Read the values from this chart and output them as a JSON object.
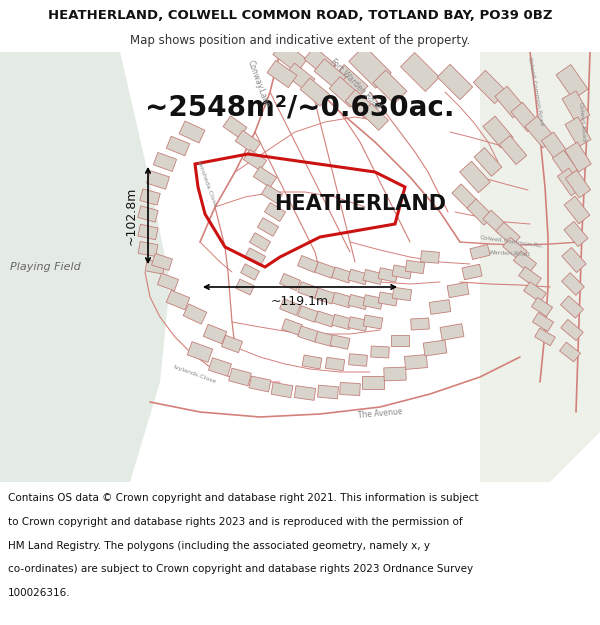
{
  "title_line1": "HEATHERLAND, COLWELL COMMON ROAD, TOTLAND BAY, PO39 0BZ",
  "title_line2": "Map shows position and indicative extent of the property.",
  "area_text": "~2548m²/~0.630ac.",
  "property_label": "HEATHERLAND",
  "dim1": "~102.8m",
  "dim2": "~119.1m",
  "playing_field_label": "Playing Field",
  "footer_lines": [
    "Contains OS data © Crown copyright and database right 2021. This information is subject",
    "to Crown copyright and database rights 2023 and is reproduced with the permission of",
    "HM Land Registry. The polygons (including the associated geometry, namely x, y",
    "co-ordinates) are subject to Crown copyright and database rights 2023 Ordnance Survey",
    "100026316."
  ],
  "map_bg": "#f7f4f0",
  "map_left_bg": "#e8ede8",
  "header_bg": "#ffffff",
  "footer_bg": "#ffffff",
  "road_color": "#d4807a",
  "building_fc": "#d8d4cc",
  "building_ec": "#c4807a",
  "property_outline_color": "#cc1111",
  "title_fontsize": 9.5,
  "subtitle_fontsize": 8.5,
  "area_fontsize": 20,
  "label_fontsize": 15,
  "footer_fontsize": 7.5,
  "road_label_color": "#888888",
  "road_label_fontsize": 5.5,
  "dim_fontsize": 9.0,
  "playing_field_fontsize": 8.0
}
